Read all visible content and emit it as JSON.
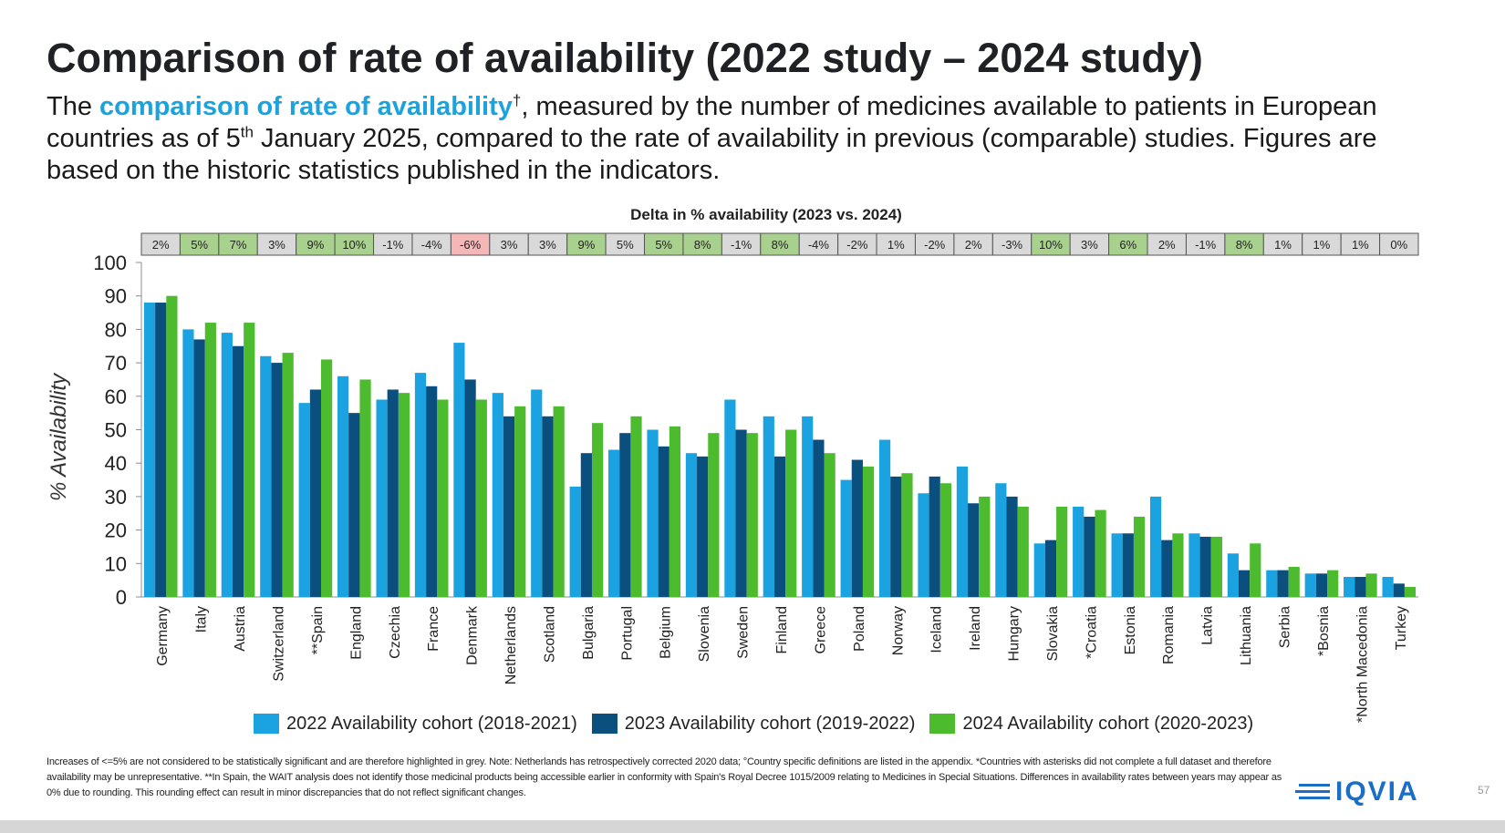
{
  "header": {
    "title": "Comparison of rate of availability (2022 study – 2024 study)",
    "subtitle_prefix": "The ",
    "subtitle_highlight": "comparison of rate of availability",
    "subtitle_dagger": "†",
    "subtitle_part1": ", measured by the number of medicines available to patients in European countries as of 5",
    "subtitle_sup": "th",
    "subtitle_part2": " January 2025, compared to the rate of availability in previous (comparable) studies. Figures are based on the historic statistics published in the indicators."
  },
  "colors": {
    "series_2022": "#1aa3e0",
    "series_2023": "#0b4f7e",
    "series_2024": "#4dbb2e",
    "delta_grey": "#d9d9d9",
    "delta_green": "#a9d18e",
    "delta_red": "#f4b6b6",
    "accent": "#1aa3dc"
  },
  "chart_data": {
    "type": "bar",
    "delta_title": "Delta in % availability (2023 vs. 2024)",
    "ylabel": "% Availability",
    "ylim": [
      0,
      100
    ],
    "yticks": [
      "0",
      "10",
      "20",
      "30",
      "40",
      "50",
      "60",
      "70",
      "80",
      "90",
      "100"
    ],
    "categories": [
      "Germany",
      "Italy",
      "Austria",
      "Switzerland",
      "**Spain",
      "England",
      "Czechia",
      "France",
      "Denmark",
      "Netherlands",
      "Scotland",
      "Bulgaria",
      "Portugal",
      "Belgium",
      "Slovenia",
      "Sweden",
      "Finland",
      "Greece",
      "Poland",
      "Norway",
      "Iceland",
      "Ireland",
      "Hungary",
      "Slovakia",
      "*Croatia",
      "Estonia",
      "Romania",
      "Latvia",
      "Lithuania",
      "Serbia",
      "*Bosnia",
      "*North Macedonia",
      "Turkey"
    ],
    "series": [
      {
        "name": "2022 Availability cohort (2018-2021)",
        "values": [
          88,
          80,
          79,
          72,
          58,
          66,
          59,
          67,
          76,
          61,
          62,
          33,
          44,
          50,
          43,
          59,
          54,
          54,
          35,
          47,
          31,
          39,
          34,
          16,
          27,
          19,
          30,
          19,
          13,
          8,
          7,
          6,
          6
        ]
      },
      {
        "name": "2023 Availability cohort (2019-2022)",
        "values": [
          88,
          77,
          75,
          70,
          62,
          55,
          62,
          63,
          65,
          54,
          54,
          43,
          49,
          45,
          42,
          50,
          42,
          47,
          41,
          36,
          36,
          28,
          30,
          17,
          24,
          19,
          17,
          18,
          8,
          8,
          7,
          6,
          4
        ]
      },
      {
        "name": "2024 Availability cohort (2020-2023)",
        "values": [
          90,
          82,
          82,
          73,
          71,
          65,
          61,
          59,
          59,
          57,
          57,
          52,
          54,
          51,
          49,
          49,
          50,
          43,
          39,
          37,
          34,
          30,
          27,
          27,
          26,
          24,
          19,
          18,
          16,
          9,
          8,
          7,
          3
        ]
      }
    ],
    "deltas": [
      {
        "label": "2%",
        "status": "grey"
      },
      {
        "label": "5%",
        "status": "green"
      },
      {
        "label": "7%",
        "status": "green"
      },
      {
        "label": "3%",
        "status": "grey"
      },
      {
        "label": "9%",
        "status": "green"
      },
      {
        "label": "10%",
        "status": "green"
      },
      {
        "label": "-1%",
        "status": "grey"
      },
      {
        "label": "-4%",
        "status": "grey"
      },
      {
        "label": "-6%",
        "status": "red"
      },
      {
        "label": "3%",
        "status": "grey"
      },
      {
        "label": "3%",
        "status": "grey"
      },
      {
        "label": "9%",
        "status": "green"
      },
      {
        "label": "5%",
        "status": "grey"
      },
      {
        "label": "5%",
        "status": "green"
      },
      {
        "label": "8%",
        "status": "green"
      },
      {
        "label": "-1%",
        "status": "grey"
      },
      {
        "label": "8%",
        "status": "green"
      },
      {
        "label": "-4%",
        "status": "grey"
      },
      {
        "label": "-2%",
        "status": "grey"
      },
      {
        "label": "1%",
        "status": "grey"
      },
      {
        "label": "-2%",
        "status": "grey"
      },
      {
        "label": "2%",
        "status": "grey"
      },
      {
        "label": "-3%",
        "status": "grey"
      },
      {
        "label": "10%",
        "status": "green"
      },
      {
        "label": "3%",
        "status": "grey"
      },
      {
        "label": "6%",
        "status": "green"
      },
      {
        "label": "2%",
        "status": "grey"
      },
      {
        "label": "-1%",
        "status": "grey"
      },
      {
        "label": "8%",
        "status": "green"
      },
      {
        "label": "1%",
        "status": "grey"
      },
      {
        "label": "1%",
        "status": "grey"
      },
      {
        "label": "1%",
        "status": "grey"
      },
      {
        "label": "0%",
        "status": "grey"
      }
    ],
    "legend_position": "bottom",
    "grid": false
  },
  "legend": {
    "items": [
      {
        "label": "2022 Availability cohort (2018-2021)"
      },
      {
        "label": "2023 Availability cohort (2019-2022)"
      },
      {
        "label": "2024 Availability cohort (2020-2023)"
      }
    ]
  },
  "footer": {
    "footnote": "Increases of <=5% are not considered to be statistically significant and are therefore highlighted in grey. Note: Netherlands has retrospectively corrected 2020 data; °Country specific definitions are listed in the appendix. *Countries with asterisks did not complete a full dataset and therefore availability may be unrepresentative. **In Spain, the WAIT analysis does not identify those medicinal products being accessible earlier in conformity with Spain's Royal Decree 1015/2009 relating to Medicines in Special Situations. Differences in availability rates between years may appear as 0% due to rounding. This rounding effect can result in minor discrepancies that do not reflect significant changes.",
    "logo_text": "IQVIA",
    "page_number": "57"
  }
}
